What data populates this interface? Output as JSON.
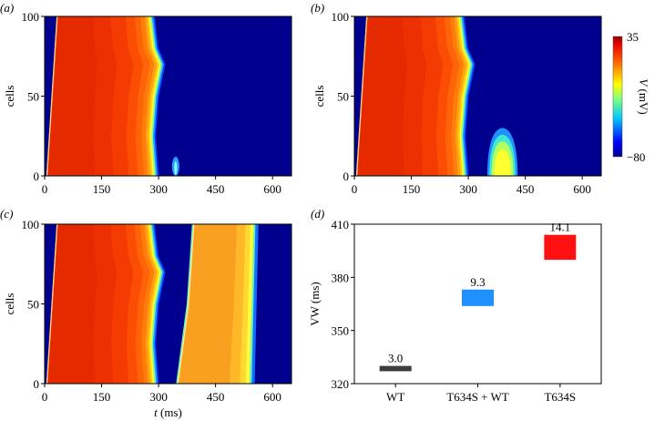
{
  "chart_data": [
    {
      "panel_label": "(a)",
      "type": "heatmap",
      "ylabel": "cells",
      "xlabel": "",
      "xlim": [
        0,
        650
      ],
      "ylim": [
        0,
        100
      ],
      "xticks": [
        "0",
        "150",
        "300",
        "450",
        "600"
      ],
      "yticks": [
        "0",
        "50",
        "100"
      ],
      "primary_wave": {
        "onset_ms": [
          5,
          32
        ],
        "end_ms_by_cell": [
          [
            0,
            293
          ],
          [
            25,
            285
          ],
          [
            50,
            293
          ],
          [
            70,
            310
          ],
          [
            80,
            292
          ],
          [
            100,
            282
          ]
        ]
      },
      "secondary_activity": {
        "cells": [
          0,
          12
        ],
        "peak_ms": 345,
        "extent_ms": 14
      }
    },
    {
      "panel_label": "(b)",
      "type": "heatmap",
      "ylabel": "cells",
      "xlabel": "",
      "xlim": [
        0,
        650
      ],
      "ylim": [
        0,
        100
      ],
      "xticks": [
        "0",
        "150",
        "300",
        "450",
        "600"
      ],
      "yticks": [
        "0",
        "50",
        "100"
      ],
      "primary_wave": {
        "onset_ms": [
          5,
          32
        ],
        "end_ms_by_cell": [
          [
            0,
            293
          ],
          [
            25,
            285
          ],
          [
            50,
            293
          ],
          [
            70,
            310
          ],
          [
            80,
            292
          ],
          [
            100,
            282
          ]
        ]
      },
      "secondary_activity": {
        "cells": [
          0,
          30
        ],
        "start_ms": 350,
        "end_ms": 430
      }
    },
    {
      "panel_label": "(c)",
      "type": "heatmap",
      "ylabel": "cells",
      "xlabel": "t (ms)",
      "xlim": [
        0,
        650
      ],
      "ylim": [
        0,
        100
      ],
      "xticks": [
        "0",
        "150",
        "300",
        "450",
        "600"
      ],
      "yticks": [
        "0",
        "50",
        "100"
      ],
      "primary_wave": {
        "onset_ms": [
          5,
          32
        ],
        "end_ms_by_cell": [
          [
            0,
            293
          ],
          [
            25,
            285
          ],
          [
            50,
            293
          ],
          [
            70,
            310
          ],
          [
            80,
            292
          ],
          [
            100,
            282
          ]
        ]
      },
      "reentry_wave": {
        "onset_ms_by_cell": [
          [
            0,
            350
          ],
          [
            50,
            378
          ],
          [
            100,
            392
          ]
        ],
        "end_ms_by_cell": [
          [
            0,
            545
          ],
          [
            50,
            550
          ],
          [
            100,
            555
          ]
        ]
      }
    },
    {
      "panel_label": "(d)",
      "type": "bar",
      "ylabel": "VW (ms)",
      "xlabel": "",
      "ylim": [
        320,
        410
      ],
      "yticks": [
        "320",
        "350",
        "380",
        "410"
      ],
      "categories": [
        "WT",
        "T634S + WT",
        "T634S"
      ],
      "bars": [
        {
          "category": "WT",
          "low": 327,
          "high": 330,
          "width_label": "3.0",
          "color": "#3d3d3d"
        },
        {
          "category": "T634S + WT",
          "low": 363.8,
          "high": 373.1,
          "width_label": "9.3",
          "color": "#1e90ff"
        },
        {
          "category": "T634S",
          "low": 389.9,
          "high": 404.0,
          "width_label": "14.1",
          "color": "#ff1010"
        }
      ]
    }
  ],
  "colorbar": {
    "label": "V (mV)",
    "max_label": "35",
    "min_label": "−80",
    "max": 35,
    "min": -80
  }
}
